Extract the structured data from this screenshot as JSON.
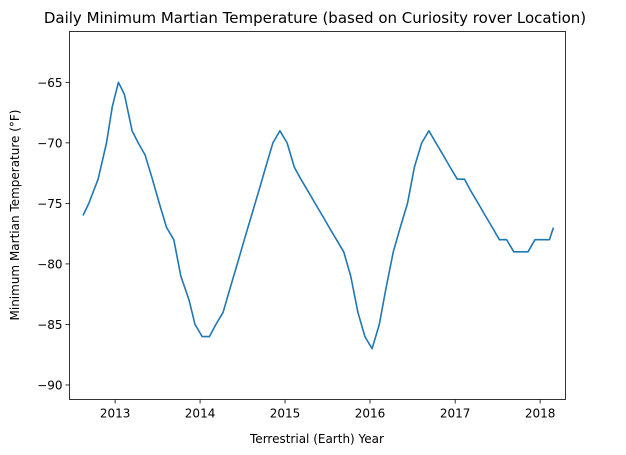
{
  "chart_data": {
    "type": "line",
    "title": "Daily Minimum Martian Temperature (based on Curiosity rover Location)",
    "xlabel": "Terrestrial (Earth) Year",
    "ylabel": "Minimum Martian Temperature (°F)",
    "xlim": [
      "2012-06-19",
      "2018-04-20"
    ],
    "ylim": [
      -91.2,
      -60.8
    ],
    "x_ticks": [
      "2013",
      "2014",
      "2015",
      "2016",
      "2017",
      "2018"
    ],
    "y_ticks": [
      -65,
      -70,
      -75,
      -80,
      -85,
      -90
    ],
    "grid": false,
    "legend": "none",
    "series": [
      {
        "color": "#1f77b4",
        "x": [
          "2012-08-16",
          "2012-09-10",
          "2012-10-20",
          "2012-11-25",
          "2012-12-20",
          "2013-01-15",
          "2013-02-10",
          "2013-03-15",
          "2013-04-10",
          "2013-05-10",
          "2013-06-10",
          "2013-07-10",
          "2013-08-10",
          "2013-09-10",
          "2013-10-10",
          "2013-11-15",
          "2013-12-10",
          "2014-01-10",
          "2014-02-10",
          "2014-03-10",
          "2014-04-10",
          "2014-05-10",
          "2014-06-10",
          "2014-07-10",
          "2014-08-10",
          "2014-09-10",
          "2014-10-10",
          "2014-11-10",
          "2014-12-10",
          "2015-01-10",
          "2015-02-10",
          "2015-03-10",
          "2015-04-10",
          "2015-05-10",
          "2015-06-10",
          "2015-07-10",
          "2015-08-10",
          "2015-09-10",
          "2015-10-10",
          "2015-11-10",
          "2015-12-10",
          "2016-01-10",
          "2016-02-10",
          "2016-03-10",
          "2016-04-10",
          "2016-05-10",
          "2016-06-10",
          "2016-07-10",
          "2016-08-10",
          "2016-09-10",
          "2016-10-10",
          "2016-11-10",
          "2016-12-10",
          "2017-01-10",
          "2017-02-10",
          "2017-03-10",
          "2017-04-10",
          "2017-05-10",
          "2017-06-10",
          "2017-07-10",
          "2017-08-10",
          "2017-09-10",
          "2017-10-10",
          "2017-11-10",
          "2017-12-10",
          "2018-01-10",
          "2018-02-10",
          "2018-02-27"
        ],
        "values": [
          -76,
          -75,
          -73,
          -70,
          -67,
          -65,
          -66,
          -69,
          -70,
          -71,
          -73,
          -75,
          -77,
          -78,
          -81,
          -83,
          -85,
          -86,
          -86,
          -85,
          -84,
          -82,
          -80,
          -78,
          -76,
          -74,
          -72,
          -70,
          -69,
          -70,
          -72,
          -73,
          -74,
          -75,
          -76,
          -77,
          -78,
          -79,
          -81,
          -84,
          -86,
          -87,
          -85,
          -82,
          -79,
          -77,
          -75,
          -72,
          -70,
          -69,
          -70,
          -71,
          -72,
          -73,
          -73,
          -74,
          -75,
          -76,
          -77,
          -78,
          -78,
          -79,
          -79,
          -79,
          -78,
          -78,
          -78,
          -77
        ]
      }
    ]
  }
}
